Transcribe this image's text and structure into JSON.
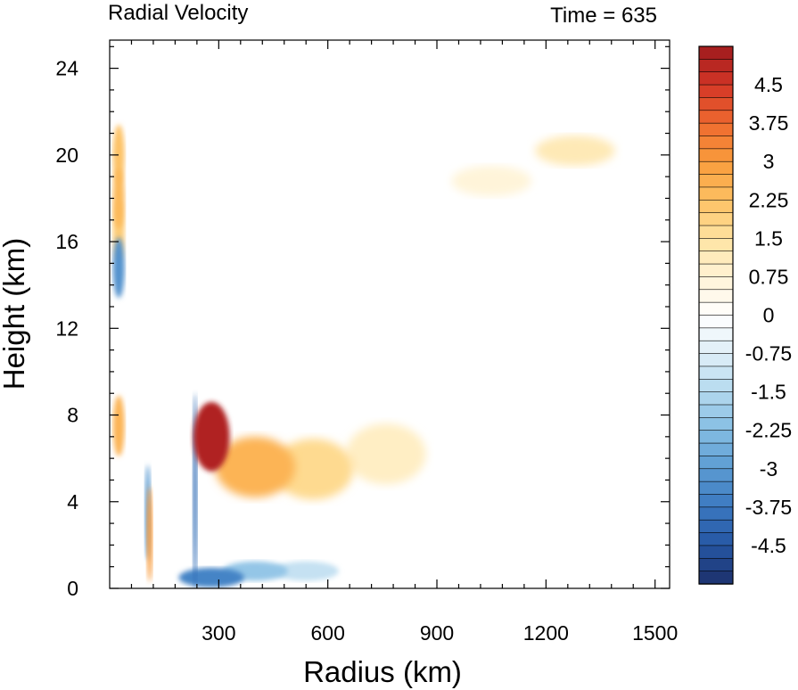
{
  "chart_data": {
    "type": "heatmap",
    "title": "Radial Velocity",
    "subtitle": "Time = 635",
    "xlabel": "Radius (km)",
    "ylabel": "Height (km)",
    "xlim": [
      0,
      1540
    ],
    "ylim": [
      0,
      25.3
    ],
    "x_ticks": [
      300,
      600,
      900,
      1200,
      1500
    ],
    "x_tick_labels": [
      "300",
      "600",
      "900",
      "1200",
      "1500"
    ],
    "y_ticks": [
      0,
      4,
      8,
      12,
      16,
      20,
      24
    ],
    "y_tick_labels": [
      "0",
      "4",
      "8",
      "12",
      "16",
      "20",
      "24"
    ],
    "grid": false,
    "colorbar": {
      "min": -5.25,
      "max": 5.25,
      "step": 0.25,
      "tick_values": [
        4.5,
        3.75,
        3,
        2.25,
        1.5,
        0.75,
        0,
        -0.75,
        -1.5,
        -2.25,
        -3,
        -3.75,
        -4.5
      ],
      "tick_labels": [
        "4.5",
        "3.75",
        "3",
        "2.25",
        "1.5",
        "0.75",
        "0",
        "-0.75",
        "-1.5",
        "-2.25",
        "-3",
        "-3.75",
        "-4.5"
      ],
      "stops": [
        [
          -5.25,
          "#1c2f6b"
        ],
        [
          -4.5,
          "#2556a3"
        ],
        [
          -3.75,
          "#3a78c0"
        ],
        [
          -3.0,
          "#5b9bd2"
        ],
        [
          -2.25,
          "#84bde3"
        ],
        [
          -1.5,
          "#b4d9ee"
        ],
        [
          -0.75,
          "#dfeef7"
        ],
        [
          0.0,
          "#ffffff"
        ],
        [
          0.75,
          "#fff3d6"
        ],
        [
          1.5,
          "#fee3a1"
        ],
        [
          2.25,
          "#fdc062"
        ],
        [
          3.0,
          "#f99c3c"
        ],
        [
          3.75,
          "#ee6a2f"
        ],
        [
          4.5,
          "#d33526"
        ],
        [
          5.25,
          "#9e1a1d"
        ]
      ]
    },
    "features": [
      {
        "region": "outflow maximum",
        "x": 280,
        "y": 7.0,
        "value": 5.0
      },
      {
        "region": "outflow band",
        "x": 400,
        "y": 5.6,
        "value": 2.5
      },
      {
        "region": "outflow band",
        "x": 560,
        "y": 5.5,
        "value": 1.7
      },
      {
        "region": "outflow band",
        "x": 760,
        "y": 6.2,
        "value": 1.0
      },
      {
        "region": "upper outflow",
        "x": 1280,
        "y": 20.2,
        "value": 1.2
      },
      {
        "region": "upper outflow",
        "x": 1050,
        "y": 18.8,
        "value": 0.7
      },
      {
        "region": "inner core",
        "x": 25,
        "y": 7.5,
        "value": 2.5
      },
      {
        "region": "inner core",
        "x": 25,
        "y": 14.8,
        "value": -3.2
      },
      {
        "region": "inner core",
        "x": 25,
        "y": 18.0,
        "value": 2.4
      },
      {
        "region": "inner core",
        "x": 25,
        "y": 16.5,
        "value": 2.0
      },
      {
        "region": "inner core",
        "x": 25,
        "y": 20.0,
        "value": 2.2
      },
      {
        "region": "low-level inflow",
        "x": 280,
        "y": 0.5,
        "value": -3.5
      },
      {
        "region": "low-level inflow",
        "x": 400,
        "y": 0.8,
        "value": -2.0
      },
      {
        "region": "low-level inflow",
        "x": 540,
        "y": 0.8,
        "value": -1.2
      },
      {
        "region": "eyewall column",
        "x": 235,
        "y": 4.5,
        "value": -4.0
      },
      {
        "region": "inner rainband",
        "x": 105,
        "y": 3.5,
        "value": -3.0
      },
      {
        "region": "inner rainband",
        "x": 110,
        "y": 2.5,
        "value": 3.0
      }
    ]
  }
}
